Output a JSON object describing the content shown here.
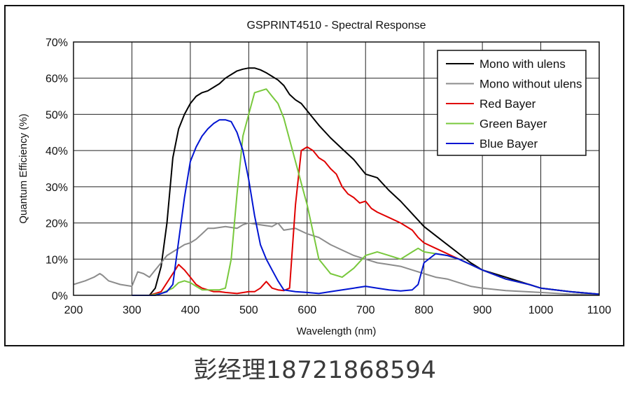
{
  "watermark": "彭经理18721868594",
  "chart_data": {
    "type": "line",
    "title": "GSPRINT4510 - Spectral Response",
    "xlabel": "Wavelength (nm)",
    "ylabel": "Quantum Efficiency (%)",
    "xlim": [
      200,
      1100
    ],
    "ylim": [
      0,
      70
    ],
    "xticks": [
      200,
      300,
      400,
      500,
      600,
      700,
      800,
      900,
      1000,
      1100
    ],
    "yticks": [
      0,
      10,
      20,
      30,
      40,
      50,
      60,
      70
    ],
    "ytick_labels": [
      "0%",
      "10%",
      "20%",
      "30%",
      "40%",
      "50%",
      "60%",
      "70%"
    ],
    "grid": true,
    "legend_position": "top-right",
    "series": [
      {
        "name": "Mono with ulens",
        "color": "#000000",
        "x": [
          330,
          340,
          350,
          360,
          370,
          380,
          390,
          400,
          410,
          420,
          430,
          440,
          450,
          460,
          470,
          480,
          490,
          500,
          510,
          520,
          530,
          540,
          550,
          560,
          570,
          580,
          590,
          600,
          620,
          640,
          660,
          680,
          700,
          720,
          740,
          760,
          780,
          800,
          820,
          840,
          860,
          880,
          900,
          940,
          980,
          1000,
          1050,
          1100
        ],
        "y": [
          0,
          2,
          8,
          20,
          38,
          46,
          50,
          53,
          55,
          56,
          56.5,
          57.5,
          58.5,
          60,
          61,
          62,
          62.5,
          62.8,
          62.8,
          62.3,
          61.5,
          60.5,
          59.5,
          58,
          55.5,
          54,
          53,
          51,
          47,
          43.5,
          40.5,
          37.5,
          33.5,
          32.5,
          29,
          26,
          22.5,
          19,
          16.5,
          14,
          11.5,
          9,
          7,
          5,
          3,
          2,
          1,
          0.3
        ]
      },
      {
        "name": "Mono without ulens",
        "color": "#8c8c8c",
        "x": [
          200,
          220,
          235,
          245,
          250,
          260,
          280,
          300,
          310,
          320,
          330,
          340,
          350,
          360,
          370,
          380,
          390,
          400,
          410,
          420,
          430,
          440,
          460,
          480,
          490,
          500,
          520,
          540,
          550,
          560,
          580,
          600,
          620,
          640,
          660,
          680,
          700,
          720,
          740,
          760,
          780,
          800,
          820,
          840,
          860,
          880,
          900,
          940,
          1000,
          1050,
          1100
        ],
        "y": [
          3,
          4,
          5,
          6,
          5.5,
          4,
          3,
          2.5,
          6.5,
          6,
          5,
          7,
          9,
          11,
          12,
          13,
          14,
          14.5,
          15.5,
          17,
          18.5,
          18.5,
          19,
          18.5,
          19.5,
          20,
          19.5,
          19,
          20,
          18,
          18.5,
          17,
          16,
          14,
          12.5,
          11,
          10,
          9,
          8.5,
          8,
          7,
          6,
          5,
          4.5,
          3.5,
          2.5,
          2,
          1.3,
          0.8,
          0.3,
          0.2
        ]
      },
      {
        "name": "Red Bayer",
        "color": "#e00000",
        "x": [
          330,
          350,
          370,
          380,
          390,
          400,
          410,
          420,
          430,
          440,
          450,
          460,
          480,
          500,
          510,
          520,
          530,
          540,
          550,
          560,
          570,
          580,
          590,
          600,
          610,
          620,
          630,
          640,
          650,
          660,
          670,
          680,
          690,
          700,
          710,
          720,
          740,
          760,
          780,
          790,
          800,
          820,
          840,
          860,
          880,
          900,
          940,
          980,
          1000,
          1050,
          1100
        ],
        "y": [
          0,
          1,
          6,
          8.5,
          7,
          5,
          3,
          2,
          1.5,
          1,
          1,
          0.8,
          0.5,
          1,
          1,
          2,
          3.8,
          2,
          1.5,
          1.3,
          2,
          25,
          40,
          41,
          40,
          38,
          37,
          35,
          33.5,
          30,
          28,
          27,
          25.5,
          26,
          24,
          23,
          21.5,
          20,
          18,
          16,
          14.5,
          13,
          11.5,
          10,
          8.5,
          7,
          4.5,
          3,
          2,
          1,
          0.3
        ]
      },
      {
        "name": "Green Bayer",
        "color": "#78c83c",
        "x": [
          300,
          330,
          350,
          370,
          380,
          390,
          400,
          410,
          420,
          430,
          440,
          450,
          460,
          470,
          480,
          490,
          500,
          510,
          520,
          530,
          540,
          550,
          560,
          570,
          580,
          590,
          600,
          620,
          640,
          660,
          680,
          700,
          720,
          740,
          760,
          780,
          790,
          800,
          820,
          840,
          860,
          880,
          900,
          940,
          980,
          1000,
          1050,
          1100
        ],
        "y": [
          0,
          0,
          0.5,
          2,
          3.5,
          4,
          3.5,
          2.5,
          1.5,
          1.5,
          1.5,
          1.5,
          2,
          10,
          28,
          44,
          50,
          56,
          56.5,
          57,
          55,
          53,
          49,
          43,
          37,
          31,
          25,
          10,
          6,
          5,
          7.5,
          11,
          12,
          11,
          10,
          12,
          13,
          12,
          11.5,
          11,
          10,
          8.5,
          7,
          4.5,
          3,
          2,
          1,
          0.3
        ]
      },
      {
        "name": "Blue Bayer",
        "color": "#0014d2",
        "x": [
          300,
          340,
          350,
          360,
          370,
          380,
          390,
          400,
          410,
          420,
          430,
          440,
          450,
          460,
          470,
          480,
          490,
          500,
          510,
          520,
          530,
          540,
          550,
          560,
          580,
          600,
          620,
          640,
          660,
          680,
          700,
          720,
          740,
          760,
          780,
          790,
          800,
          820,
          840,
          860,
          880,
          900,
          940,
          980,
          1000,
          1050,
          1100
        ],
        "y": [
          0,
          0,
          0.5,
          1,
          3,
          15,
          27,
          37,
          41,
          44,
          46,
          47.5,
          48.5,
          48.5,
          48,
          45,
          40,
          32,
          22,
          14,
          10,
          7,
          4,
          1.5,
          1,
          0.8,
          0.5,
          1,
          1.5,
          2,
          2.5,
          2,
          1.5,
          1.2,
          1.5,
          3,
          9,
          11.5,
          11,
          10,
          8.5,
          7,
          4.5,
          3,
          2,
          1,
          0.3
        ]
      }
    ]
  }
}
